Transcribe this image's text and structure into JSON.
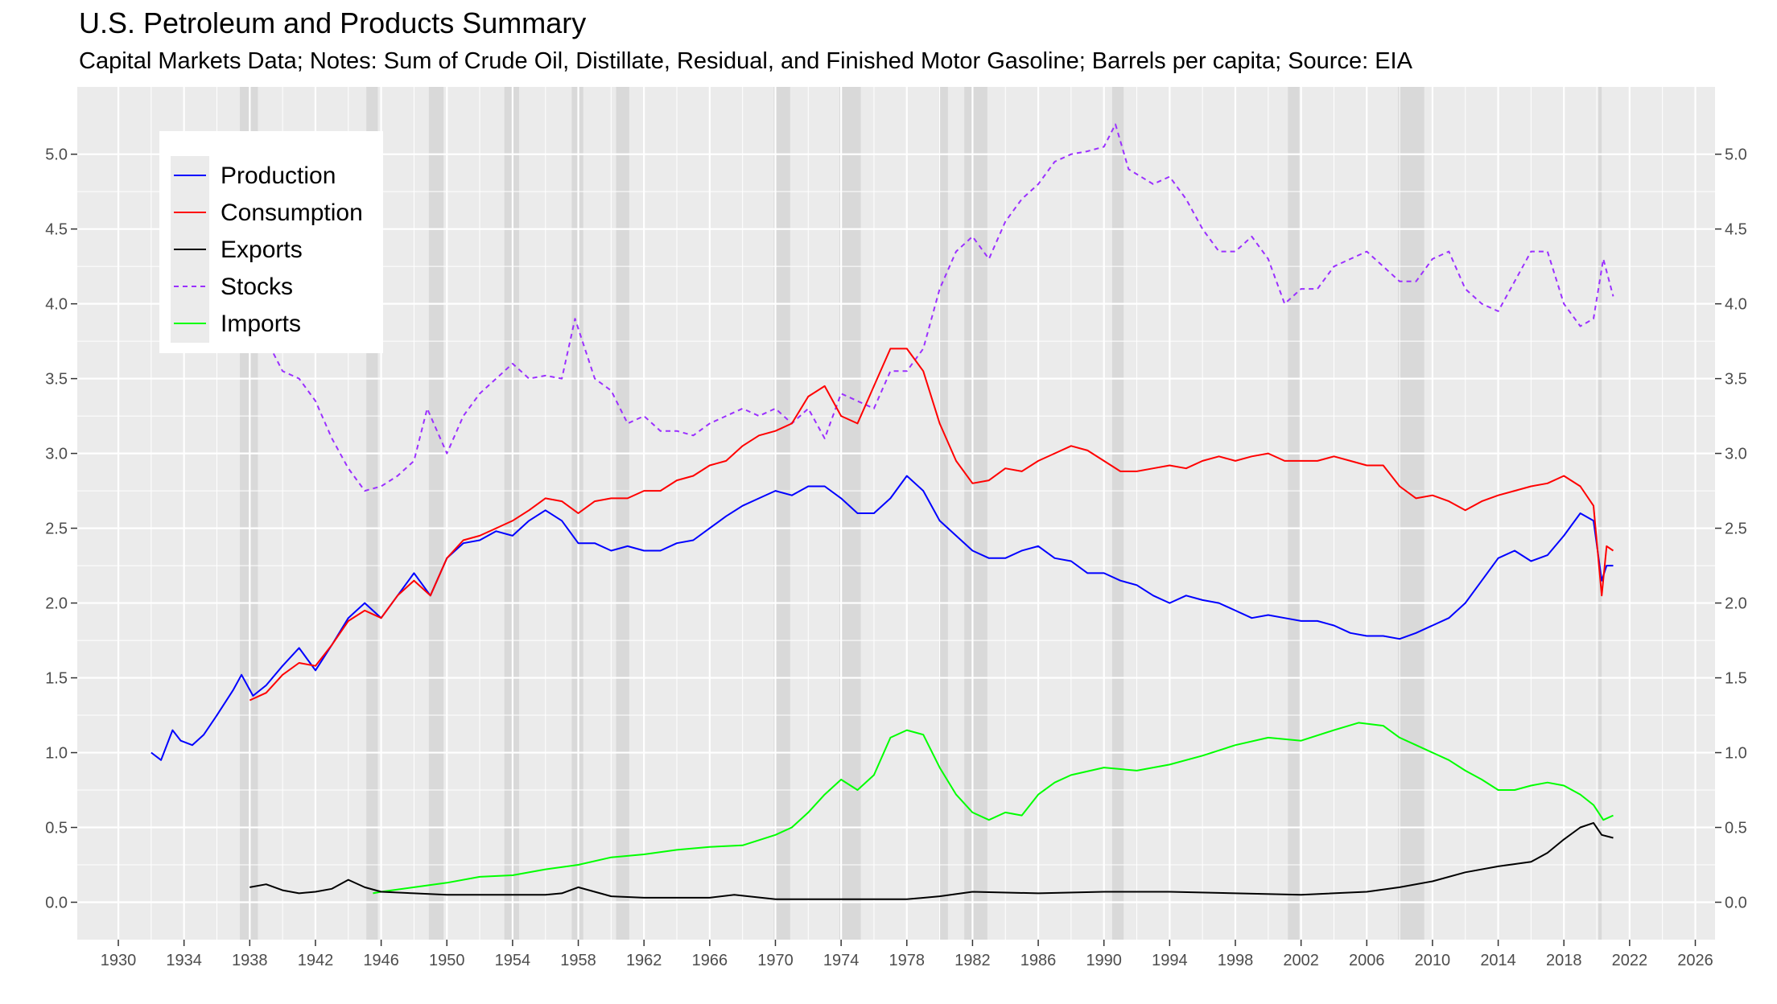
{
  "title": "U.S. Petroleum and Products Summary",
  "subtitle": "Capital Markets Data; Notes: Sum of Crude Oil, Distillate, Residual, and Finished Motor Gasoline; Barrels per capita; Source: EIA",
  "chart_data": {
    "type": "line",
    "title": "U.S. Petroleum and Products Summary",
    "subtitle": "Capital Markets Data; Notes: Sum of Crude Oil, Distillate, Residual, and Finished Motor Gasoline; Barrels per capita; Source: EIA",
    "xlim": [
      1927.5,
      2027.2
    ],
    "ylim": [
      -0.25,
      5.45
    ],
    "x_ticks": [
      1930,
      1934,
      1938,
      1942,
      1946,
      1950,
      1954,
      1958,
      1962,
      1966,
      1970,
      1974,
      1978,
      1982,
      1986,
      1990,
      1994,
      1998,
      2002,
      2006,
      2010,
      2014,
      2018,
      2022,
      2026
    ],
    "y_ticks": [
      "0.0",
      "0.5",
      "1.0",
      "1.5",
      "2.0",
      "2.5",
      "3.0",
      "3.5",
      "4.0",
      "4.5",
      "5.0"
    ],
    "grid": true,
    "secondary_y_axis": true,
    "legend_position": "top-left",
    "background": "#ebebeb",
    "recession_shading": [
      [
        1937.4,
        1938.5
      ],
      [
        1945.1,
        1945.8
      ],
      [
        1948.9,
        1949.8
      ],
      [
        1953.5,
        1954.4
      ],
      [
        1957.6,
        1958.3
      ],
      [
        1960.3,
        1961.1
      ],
      [
        1969.9,
        1970.9
      ],
      [
        1973.9,
        1975.2
      ],
      [
        1980.0,
        1980.5
      ],
      [
        1981.5,
        1982.9
      ],
      [
        1990.5,
        1991.2
      ],
      [
        2001.2,
        2001.9
      ],
      [
        2007.9,
        2009.5
      ],
      [
        2020.1,
        2020.3
      ]
    ],
    "series": [
      {
        "name": "Production",
        "color": "#0000ff",
        "dash": "solid",
        "x": [
          1932.0,
          1932.6,
          1933.3,
          1933.8,
          1934.5,
          1935.2,
          1936.0,
          1937.0,
          1937.5,
          1938.2,
          1939.0,
          1940.0,
          1941.0,
          1942.0,
          1943.0,
          1944.0,
          1945.0,
          1946.0,
          1947.0,
          1948.0,
          1949.0,
          1950.0,
          1951.0,
          1952.0,
          1953.0,
          1954.0,
          1955.0,
          1956.0,
          1957.0,
          1958.0,
          1959.0,
          1960.0,
          1961.0,
          1962.0,
          1963.0,
          1964.0,
          1965.0,
          1966.0,
          1967.0,
          1968.0,
          1969.0,
          1970.0,
          1971.0,
          1972.0,
          1973.0,
          1974.0,
          1975.0,
          1976.0,
          1977.0,
          1978.0,
          1979.0,
          1980.0,
          1981.0,
          1982.0,
          1983.0,
          1984.0,
          1985.0,
          1986.0,
          1987.0,
          1988.0,
          1989.0,
          1990.0,
          1991.0,
          1992.0,
          1993.0,
          1994.0,
          1995.0,
          1996.0,
          1997.0,
          1998.0,
          1999.0,
          2000.0,
          2001.0,
          2002.0,
          2003.0,
          2004.0,
          2005.0,
          2006.0,
          2007.0,
          2008.0,
          2009.0,
          2010.0,
          2011.0,
          2012.0,
          2013.0,
          2014.0,
          2015.0,
          2016.0,
          2017.0,
          2018.0,
          2019.0,
          2019.8,
          2020.3,
          2020.6,
          2021.0
        ],
        "values": [
          1.0,
          0.95,
          1.15,
          1.08,
          1.05,
          1.12,
          1.25,
          1.42,
          1.52,
          1.38,
          1.45,
          1.58,
          1.7,
          1.55,
          1.72,
          1.9,
          2.0,
          1.9,
          2.05,
          2.2,
          2.05,
          2.3,
          2.4,
          2.42,
          2.48,
          2.45,
          2.55,
          2.62,
          2.55,
          2.4,
          2.4,
          2.35,
          2.38,
          2.35,
          2.35,
          2.4,
          2.42,
          2.5,
          2.58,
          2.65,
          2.7,
          2.75,
          2.72,
          2.78,
          2.78,
          2.7,
          2.6,
          2.6,
          2.7,
          2.85,
          2.75,
          2.55,
          2.45,
          2.35,
          2.3,
          2.3,
          2.35,
          2.38,
          2.3,
          2.28,
          2.2,
          2.2,
          2.15,
          2.12,
          2.05,
          2.0,
          2.05,
          2.02,
          2.0,
          1.95,
          1.9,
          1.92,
          1.9,
          1.88,
          1.88,
          1.85,
          1.8,
          1.78,
          1.78,
          1.76,
          1.8,
          1.85,
          1.9,
          2.0,
          2.15,
          2.3,
          2.35,
          2.28,
          2.32,
          2.45,
          2.6,
          2.55,
          2.15,
          2.25,
          2.25
        ]
      },
      {
        "name": "Consumption",
        "color": "#ff0000",
        "dash": "solid",
        "x": [
          1938.0,
          1939.0,
          1940.0,
          1941.0,
          1942.0,
          1943.0,
          1944.0,
          1945.0,
          1946.0,
          1947.0,
          1948.0,
          1949.0,
          1950.0,
          1951.0,
          1952.0,
          1953.0,
          1954.0,
          1955.0,
          1956.0,
          1957.0,
          1958.0,
          1959.0,
          1960.0,
          1961.0,
          1962.0,
          1963.0,
          1964.0,
          1965.0,
          1966.0,
          1967.0,
          1968.0,
          1969.0,
          1970.0,
          1971.0,
          1972.0,
          1973.0,
          1974.0,
          1975.0,
          1976.0,
          1977.0,
          1978.0,
          1979.0,
          1980.0,
          1981.0,
          1982.0,
          1983.0,
          1984.0,
          1985.0,
          1986.0,
          1987.0,
          1988.0,
          1989.0,
          1990.0,
          1991.0,
          1992.0,
          1993.0,
          1994.0,
          1995.0,
          1996.0,
          1997.0,
          1998.0,
          1999.0,
          2000.0,
          2001.0,
          2002.0,
          2003.0,
          2004.0,
          2005.0,
          2006.0,
          2007.0,
          2008.0,
          2009.0,
          2010.0,
          2011.0,
          2012.0,
          2013.0,
          2014.0,
          2015.0,
          2016.0,
          2017.0,
          2018.0,
          2019.0,
          2019.8,
          2020.3,
          2020.6,
          2021.0
        ],
        "values": [
          1.35,
          1.4,
          1.52,
          1.6,
          1.58,
          1.72,
          1.88,
          1.95,
          1.9,
          2.05,
          2.15,
          2.05,
          2.3,
          2.42,
          2.45,
          2.5,
          2.55,
          2.62,
          2.7,
          2.68,
          2.6,
          2.68,
          2.7,
          2.7,
          2.75,
          2.75,
          2.82,
          2.85,
          2.92,
          2.95,
          3.05,
          3.12,
          3.15,
          3.2,
          3.38,
          3.45,
          3.25,
          3.2,
          3.45,
          3.7,
          3.7,
          3.55,
          3.2,
          2.95,
          2.8,
          2.82,
          2.9,
          2.88,
          2.95,
          3.0,
          3.05,
          3.02,
          2.95,
          2.88,
          2.88,
          2.9,
          2.92,
          2.9,
          2.95,
          2.98,
          2.95,
          2.98,
          3.0,
          2.95,
          2.95,
          2.95,
          2.98,
          2.95,
          2.92,
          2.92,
          2.78,
          2.7,
          2.72,
          2.68,
          2.62,
          2.68,
          2.72,
          2.75,
          2.78,
          2.8,
          2.85,
          2.78,
          2.65,
          2.05,
          2.38,
          2.35
        ]
      },
      {
        "name": "Exports",
        "color": "#000000",
        "dash": "solid",
        "x": [
          1938.0,
          1939.0,
          1940.0,
          1941.0,
          1942.0,
          1943.0,
          1944.0,
          1945.0,
          1946.0,
          1948.0,
          1950.0,
          1952.0,
          1954.0,
          1956.0,
          1957.0,
          1958.0,
          1960.0,
          1962.0,
          1966.0,
          1967.5,
          1970.0,
          1974.0,
          1978.0,
          1980.0,
          1982.0,
          1986.0,
          1990.0,
          1994.0,
          1998.0,
          2002.0,
          2006.0,
          2008.0,
          2010.0,
          2012.0,
          2014.0,
          2016.0,
          2017.0,
          2018.0,
          2019.0,
          2019.8,
          2020.3,
          2021.0
        ],
        "values": [
          0.1,
          0.12,
          0.08,
          0.06,
          0.07,
          0.09,
          0.15,
          0.1,
          0.07,
          0.06,
          0.05,
          0.05,
          0.05,
          0.05,
          0.06,
          0.1,
          0.04,
          0.03,
          0.03,
          0.05,
          0.02,
          0.02,
          0.02,
          0.04,
          0.07,
          0.06,
          0.07,
          0.07,
          0.06,
          0.05,
          0.07,
          0.1,
          0.14,
          0.2,
          0.24,
          0.27,
          0.33,
          0.42,
          0.5,
          0.53,
          0.45,
          0.43
        ]
      },
      {
        "name": "Stocks",
        "color": "#9b30ff",
        "dash": "dashed",
        "x": [
          1939.2,
          1940.0,
          1941.0,
          1942.0,
          1943.0,
          1944.0,
          1945.0,
          1946.0,
          1947.0,
          1948.0,
          1948.8,
          1950.0,
          1951.0,
          1952.0,
          1953.0,
          1954.0,
          1955.0,
          1956.0,
          1957.0,
          1957.8,
          1959.0,
          1960.0,
          1961.0,
          1962.0,
          1963.0,
          1964.0,
          1965.0,
          1966.0,
          1967.0,
          1968.0,
          1969.0,
          1970.0,
          1971.0,
          1972.0,
          1973.0,
          1974.0,
          1975.0,
          1976.0,
          1977.0,
          1978.0,
          1979.0,
          1980.0,
          1981.0,
          1982.0,
          1983.0,
          1984.0,
          1985.0,
          1986.0,
          1987.0,
          1988.0,
          1989.0,
          1990.0,
          1990.7,
          1991.5,
          1993.0,
          1994.0,
          1995.0,
          1996.0,
          1997.0,
          1998.0,
          1999.0,
          2000.0,
          2001.0,
          2002.0,
          2003.0,
          2004.0,
          2005.0,
          2006.0,
          2007.0,
          2008.0,
          2009.0,
          2010.0,
          2011.0,
          2012.0,
          2013.0,
          2014.0,
          2015.0,
          2016.0,
          2017.0,
          2018.0,
          2019.0,
          2019.8,
          2020.4,
          2021.0
        ],
        "values": [
          3.72,
          3.55,
          3.5,
          3.35,
          3.1,
          2.9,
          2.75,
          2.78,
          2.85,
          2.95,
          3.3,
          3.0,
          3.25,
          3.4,
          3.5,
          3.6,
          3.5,
          3.52,
          3.5,
          3.9,
          3.5,
          3.42,
          3.2,
          3.25,
          3.15,
          3.15,
          3.12,
          3.2,
          3.25,
          3.3,
          3.25,
          3.3,
          3.2,
          3.3,
          3.1,
          3.4,
          3.35,
          3.3,
          3.55,
          3.55,
          3.7,
          4.1,
          4.35,
          4.45,
          4.3,
          4.55,
          4.7,
          4.8,
          4.95,
          5.0,
          5.02,
          5.05,
          5.2,
          4.9,
          4.8,
          4.85,
          4.7,
          4.5,
          4.35,
          4.35,
          4.45,
          4.3,
          4.0,
          4.1,
          4.1,
          4.25,
          4.3,
          4.35,
          4.25,
          4.15,
          4.15,
          4.3,
          4.35,
          4.1,
          4.0,
          3.95,
          4.15,
          4.35,
          4.35,
          4.0,
          3.85,
          3.9,
          4.3,
          4.05
        ]
      },
      {
        "name": "Imports",
        "color": "#00ff00",
        "dash": "solid",
        "x": [
          1945.5,
          1946.0,
          1948.0,
          1950.0,
          1952.0,
          1954.0,
          1956.0,
          1958.0,
          1960.0,
          1962.0,
          1964.0,
          1966.0,
          1968.0,
          1970.0,
          1971.0,
          1972.0,
          1973.0,
          1974.0,
          1975.0,
          1976.0,
          1977.0,
          1978.0,
          1979.0,
          1980.0,
          1981.0,
          1982.0,
          1983.0,
          1984.0,
          1985.0,
          1986.0,
          1987.0,
          1988.0,
          1990.0,
          1992.0,
          1994.0,
          1996.0,
          1998.0,
          2000.0,
          2002.0,
          2004.0,
          2005.5,
          2007.0,
          2008.0,
          2009.0,
          2010.0,
          2011.0,
          2012.0,
          2013.0,
          2014.0,
          2015.0,
          2016.0,
          2017.0,
          2018.0,
          2019.0,
          2019.8,
          2020.4,
          2021.0
        ],
        "values": [
          0.06,
          0.07,
          0.1,
          0.13,
          0.17,
          0.18,
          0.22,
          0.25,
          0.3,
          0.32,
          0.35,
          0.37,
          0.38,
          0.45,
          0.5,
          0.6,
          0.72,
          0.82,
          0.75,
          0.85,
          1.1,
          1.15,
          1.12,
          0.9,
          0.72,
          0.6,
          0.55,
          0.6,
          0.58,
          0.72,
          0.8,
          0.85,
          0.9,
          0.88,
          0.92,
          0.98,
          1.05,
          1.1,
          1.08,
          1.15,
          1.2,
          1.18,
          1.1,
          1.05,
          1.0,
          0.95,
          0.88,
          0.82,
          0.75,
          0.75,
          0.78,
          0.8,
          0.78,
          0.72,
          0.65,
          0.55,
          0.58
        ]
      }
    ]
  }
}
